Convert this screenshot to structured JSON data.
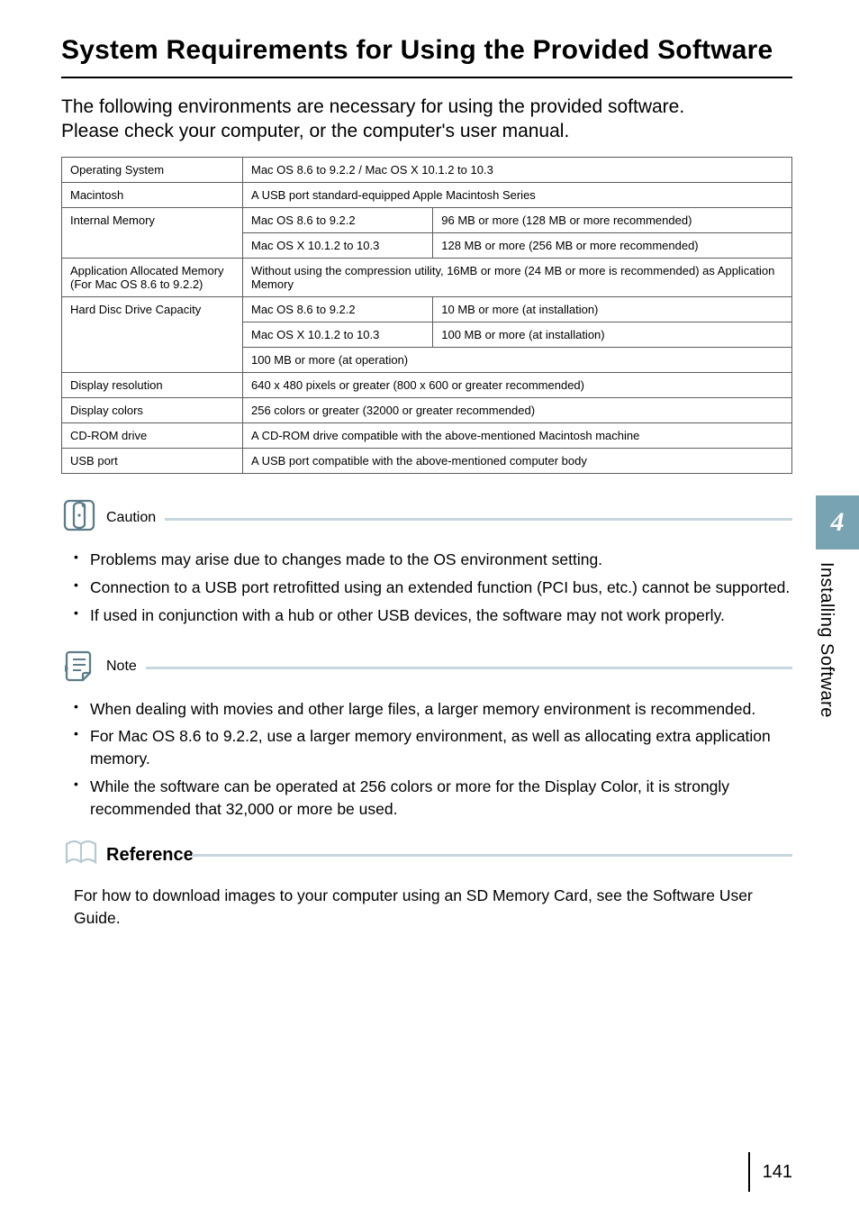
{
  "colors": {
    "accent": "#78a3b3",
    "callout_line": "#c7d6dd",
    "table_border": "#5c5c5c",
    "text": "#000000",
    "background": "#ffffff"
  },
  "heading": "System Requirements for Using the Provided Software",
  "lead": "The following environments are necessary for using the provided software.\nPlease check your computer, or the computer's user manual.",
  "table": {
    "rows": [
      {
        "key": "Operating System",
        "cells": [
          "Mac OS 8.6 to 9.2.2 / Mac OS X 10.1.2 to 10.3"
        ]
      },
      {
        "key": "Macintosh",
        "cells": [
          "A USB port standard-equipped Apple Macintosh Series"
        ]
      },
      {
        "key": "Internal Memory",
        "subrows": [
          [
            "Mac OS 8.6 to 9.2.2",
            "96 MB or more (128 MB or more recommended)"
          ],
          [
            "Mac OS X 10.1.2 to 10.3",
            "128 MB or more (256 MB or more recommended)"
          ]
        ]
      },
      {
        "key": "Application Allocated Memory (For Mac OS 8.6 to 9.2.2)",
        "cells": [
          "Without using the compression utility, 16MB or more (24 MB or more is recommended) as Application Memory"
        ]
      },
      {
        "key": "Hard Disc Drive Capacity",
        "subrows": [
          [
            "Mac OS 8.6 to 9.2.2",
            "10 MB or more (at installation)"
          ],
          [
            "Mac OS X 10.1.2 to 10.3",
            "100 MB or more (at installation)"
          ]
        ],
        "tail": "100 MB or more (at operation)"
      },
      {
        "key": "Display resolution",
        "cells": [
          "640 x 480 pixels or greater (800 x 600 or greater recommended)"
        ]
      },
      {
        "key": "Display colors",
        "cells": [
          "256 colors or greater (32000 or greater recommended)"
        ]
      },
      {
        "key": "CD-ROM drive",
        "cells": [
          "A CD-ROM drive compatible with the above-mentioned Macintosh machine"
        ]
      },
      {
        "key": "USB port",
        "cells": [
          "A USB port compatible with the above-mentioned computer body"
        ]
      }
    ]
  },
  "caution": {
    "title": "Caution",
    "items": [
      "Problems may arise due to changes made to the OS environment setting.",
      "Connection to a USB port retrofitted using an extended function (PCI bus, etc.) cannot be supported.",
      "If used in conjunction with a hub or other USB devices, the software may not work properly."
    ]
  },
  "note": {
    "title": "Note",
    "items": [
      "When dealing with movies and other large files, a larger memory environment is recommended.",
      "For Mac OS 8.6 to 9.2.2, use a larger memory environment, as well as allocating extra application memory.",
      "While the software can be operated at 256 colors or more for the Display Color, it is strongly recommended that 32,000 or more be used."
    ]
  },
  "reference": {
    "title": "Reference",
    "body": "For how to download images to your computer using an SD Memory Card, see the Software User Guide."
  },
  "sidetab": {
    "num": "4",
    "label": "Installing Software"
  },
  "page_number": "141"
}
